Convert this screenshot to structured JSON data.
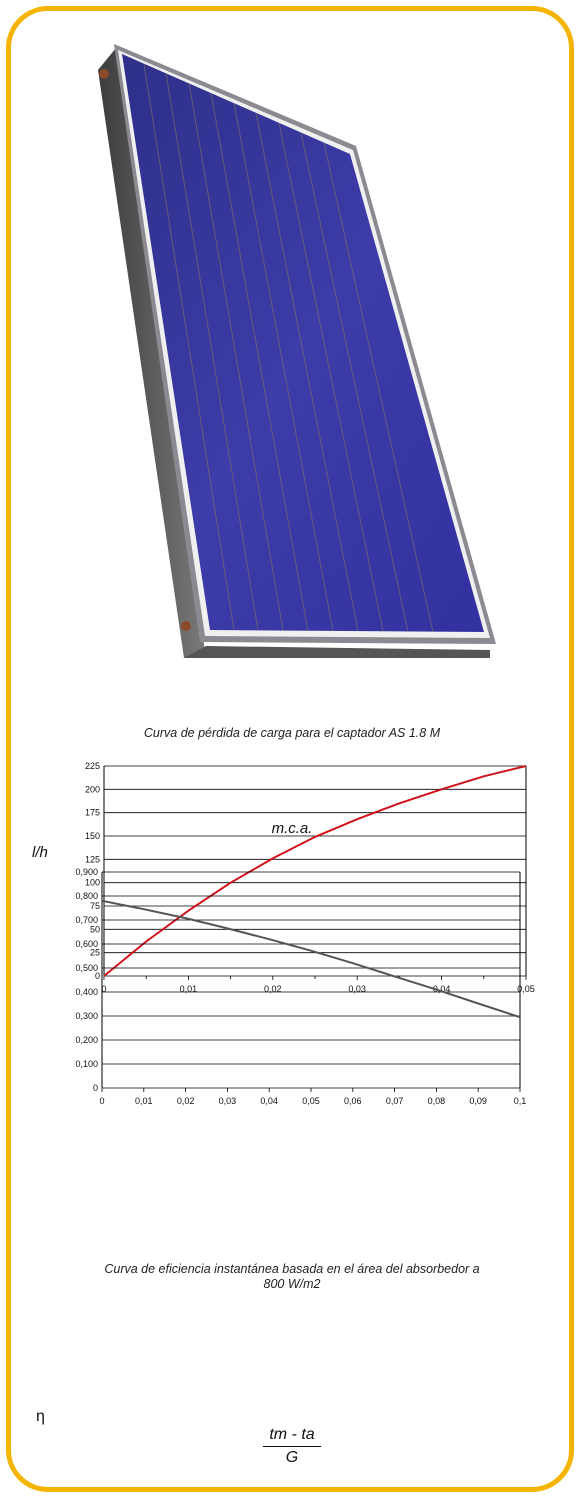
{
  "colors": {
    "frame": "#f5b400",
    "panel": "#3b3aa0",
    "curve1": "#d0121b",
    "curve2": "#555555"
  },
  "image": {
    "subject": "solar-collector-panel"
  },
  "chart_data": [
    {
      "type": "line",
      "title": "Curva de pérdida de carga para el captador AS 1.8 M",
      "xlabel": "m.c.a.",
      "ylabel": "l/h",
      "xlim": [
        0,
        0.05
      ],
      "ylim": [
        0,
        225
      ],
      "x_ticks": [
        0,
        0.01,
        0.02,
        0.03,
        0.04,
        0.05
      ],
      "x_tick_labels": [
        "0",
        "0,01",
        "0,02",
        "0,03",
        "0,04",
        "0,05"
      ],
      "y_ticks": [
        0,
        25,
        50,
        75,
        100,
        125,
        150,
        175,
        200,
        225
      ],
      "y_tick_labels": [
        "0",
        "25",
        "50",
        "75",
        "100",
        "125",
        "150",
        "175",
        "200",
        "225"
      ],
      "grid": true,
      "series": [
        {
          "x": [
            0,
            0.005,
            0.01,
            0.015,
            0.02,
            0.025,
            0.03,
            0.035,
            0.04,
            0.045,
            0.05
          ],
          "y": [
            0,
            37,
            70,
            100,
            126,
            149,
            168,
            185,
            200,
            214,
            225
          ]
        }
      ]
    },
    {
      "type": "line",
      "title": "Curva de eficiencia instantánea basada en el área del absorbedor a 800 W/m2",
      "ylabel": "η",
      "xlabel_num": "tm - ta",
      "xlabel_den": "G",
      "xlim": [
        0,
        0.1
      ],
      "ylim": [
        0,
        0.9
      ],
      "x_ticks": [
        0,
        0.01,
        0.02,
        0.03,
        0.04,
        0.05,
        0.06,
        0.07,
        0.08,
        0.09,
        0.1
      ],
      "x_tick_labels": [
        "0",
        "0,01",
        "0,02",
        "0,03",
        "0,04",
        "0,05",
        "0,06",
        "0,07",
        "0,08",
        "0,09",
        "0,1"
      ],
      "y_ticks": [
        0,
        0.1,
        0.2,
        0.3,
        0.4,
        0.5,
        0.6,
        0.7,
        0.8,
        0.9
      ],
      "y_tick_labels": [
        "0",
        "0,100",
        "0,200",
        "0,300",
        "0,400",
        "0,500",
        "0,600",
        "0,700",
        "0,800",
        "0,900"
      ],
      "grid": true,
      "series": [
        {
          "x": [
            0,
            0.01,
            0.02,
            0.03,
            0.04,
            0.05,
            0.06,
            0.07,
            0.08,
            0.09,
            0.1
          ],
          "y": [
            0.78,
            0.745,
            0.708,
            0.665,
            0.62,
            0.572,
            0.52,
            0.465,
            0.41,
            0.352,
            0.295
          ]
        }
      ]
    }
  ]
}
